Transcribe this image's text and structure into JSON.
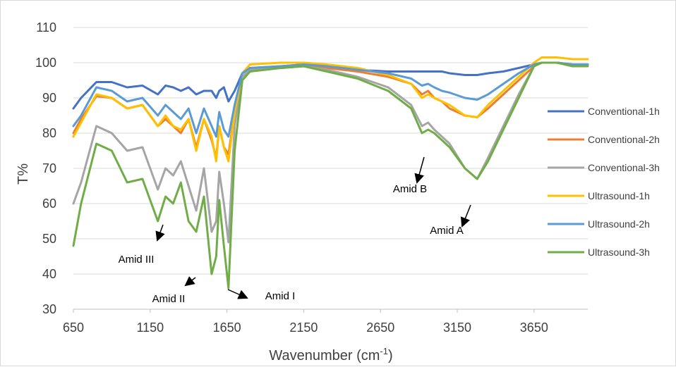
{
  "chart_data": {
    "type": "line",
    "title": "",
    "xlabel": "Wavenumber (cm",
    "xlabel_sup": "-1",
    "xlabel_close": ")",
    "ylabel": "T%",
    "xlim": [
      650,
      4000
    ],
    "ylim": [
      30,
      110
    ],
    "x_ticks": [
      650,
      1150,
      1650,
      2150,
      2650,
      3150,
      3650
    ],
    "y_ticks": [
      30,
      40,
      50,
      60,
      70,
      80,
      90,
      100,
      110
    ],
    "grid": "horizontal",
    "legend_position": "right",
    "x": [
      650,
      700,
      800,
      900,
      1000,
      1100,
      1200,
      1250,
      1300,
      1350,
      1400,
      1450,
      1500,
      1550,
      1580,
      1600,
      1630,
      1660,
      1700,
      1750,
      1800,
      2000,
      2150,
      2300,
      2500,
      2700,
      2850,
      2920,
      2960,
      3000,
      3050,
      3100,
      3200,
      3280,
      3350,
      3450,
      3550,
      3650,
      3700,
      3800,
      3900,
      4000
    ],
    "series": [
      {
        "name": "Conventional-1h",
        "color": "#4472c4",
        "values": [
          87,
          90,
          94.5,
          94.5,
          93,
          93.5,
          91,
          93.5,
          93,
          92,
          93,
          91,
          92,
          92,
          90,
          92,
          93,
          89,
          92,
          97,
          98.5,
          98.5,
          99,
          98.5,
          98,
          97.5,
          97.5,
          97.5,
          97.5,
          97.5,
          97.5,
          97,
          96.5,
          96.5,
          97,
          97.5,
          98.5,
          99.5,
          100,
          100,
          99.5,
          99.5
        ]
      },
      {
        "name": "Conventional-2h",
        "color": "#ed7d31",
        "values": [
          80,
          84,
          90.5,
          90,
          87,
          88,
          82,
          84,
          82,
          80,
          84,
          76,
          84,
          78,
          73,
          82,
          76,
          74,
          86,
          97,
          98.5,
          99,
          99.5,
          98.5,
          97.5,
          96,
          94,
          91,
          92,
          90,
          89,
          87,
          85,
          84.5,
          87,
          91,
          95,
          99,
          100,
          100,
          99.5,
          99.5
        ]
      },
      {
        "name": "Conventional-3h",
        "color": "#a5a5a5",
        "values": [
          60,
          66,
          82,
          80,
          75,
          76,
          64,
          70,
          68,
          72,
          65,
          58,
          70,
          52,
          55,
          69,
          60,
          49,
          82,
          96,
          98,
          98.5,
          99,
          98,
          96,
          93,
          88,
          82,
          83,
          81,
          79,
          77,
          70,
          67,
          73,
          82,
          91,
          99,
          100,
          100,
          99.5,
          99.5
        ]
      },
      {
        "name": "Ultrasound-1h",
        "color": "#ffc000",
        "values": [
          79,
          83,
          91,
          90,
          87,
          88,
          82,
          85,
          82,
          81,
          84,
          75,
          84,
          79,
          72,
          82,
          76,
          72,
          86,
          97,
          99.5,
          100,
          100,
          99.5,
          98.5,
          96.5,
          94,
          90,
          91,
          90,
          89,
          88,
          85,
          84.5,
          88,
          92,
          96,
          100,
          101.5,
          101.5,
          101,
          101
        ]
      },
      {
        "name": "Ultrasound-2h",
        "color": "#5b9bd5",
        "values": [
          82,
          85,
          93,
          92,
          89,
          90,
          85,
          88,
          86,
          84,
          87,
          80,
          87,
          82,
          79,
          86,
          81,
          79,
          88,
          97,
          98.5,
          99,
          99.5,
          99,
          98,
          97,
          95.5,
          93.5,
          94,
          93,
          92,
          91.5,
          90,
          89.5,
          91,
          94,
          97,
          99.5,
          100,
          100,
          99.5,
          99.5
        ]
      },
      {
        "name": "Ultrasound-3h",
        "color": "#70ad47",
        "values": [
          48,
          60,
          77,
          75,
          66,
          67,
          55,
          62,
          60,
          66,
          55,
          52,
          62,
          40,
          45,
          61,
          48,
          36,
          75,
          95,
          97.5,
          98.5,
          99,
          97.5,
          95.5,
          92,
          87,
          80,
          81,
          80,
          78,
          76,
          70,
          67,
          72,
          81,
          90,
          99,
          100,
          100,
          99,
          99
        ]
      }
    ],
    "annotations": [
      {
        "label": "Amid III"
      },
      {
        "label": "Amid II"
      },
      {
        "label": "Amid I"
      },
      {
        "label": "Amid B"
      },
      {
        "label": "Amid A"
      }
    ]
  }
}
